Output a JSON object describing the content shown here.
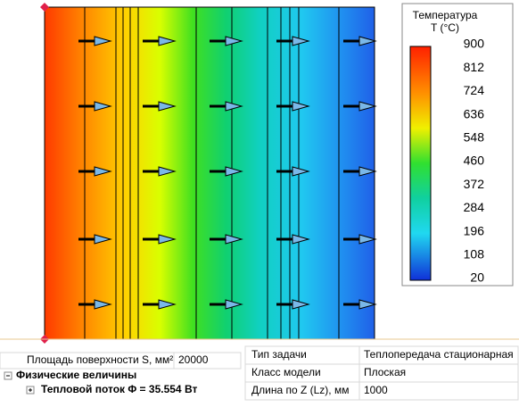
{
  "legend": {
    "title": "Температура",
    "subtitle": "T (°C)",
    "ticks": [
      900,
      812,
      724,
      636,
      548,
      460,
      372,
      284,
      196,
      108,
      20
    ]
  },
  "left_table": {
    "rows": [
      [
        "Площадь поверхности S, мм²",
        "20000"
      ]
    ],
    "group": "Физические величины",
    "item": "Тепловой поток Φ = 35.554 Вт"
  },
  "right_table": {
    "rows": [
      [
        "Тип задачи",
        "Теплопередача стационарная"
      ],
      [
        "Класс модели",
        "Плоская"
      ],
      [
        "Длина по Z (Lz), мм",
        "1000"
      ]
    ]
  }
}
